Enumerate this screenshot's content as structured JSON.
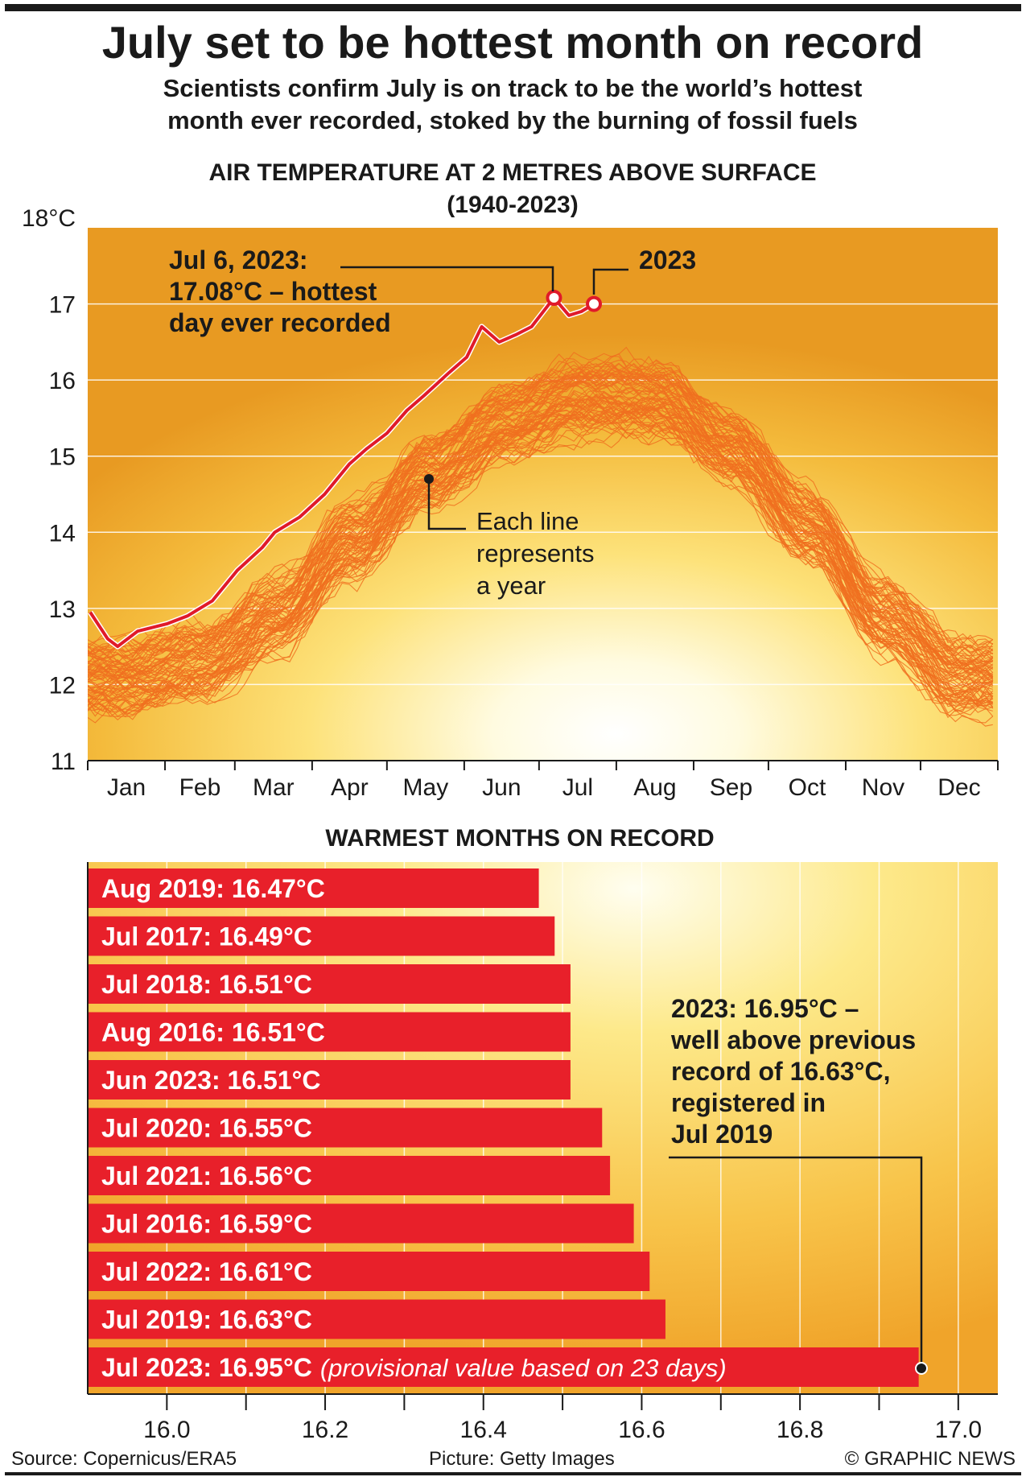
{
  "header": {
    "title": "July set to be hottest month on record",
    "subtitle_lines": [
      "Scientists confirm July is on track to be the world’s hottest",
      "month ever recorded, stoked by the burning of fossil fuels"
    ]
  },
  "colors": {
    "bar": "#e8202a",
    "line_2023": "#e01a2a",
    "year_lines": "#f07020",
    "sky_dark": "#e89a20",
    "sky_light": "#fff6c0"
  },
  "chart_data": [
    {
      "type": "line",
      "title": "AIR TEMPERATURE AT 2 METRES ABOVE SURFACE",
      "subtitle": "(1940-2023)",
      "ylabel": "°C",
      "ylim": [
        11,
        18
      ],
      "y_ticks": [
        "18°C",
        "17",
        "16",
        "15",
        "14",
        "13",
        "12",
        "11"
      ],
      "y_tick_values": [
        18,
        17,
        16,
        15,
        14,
        13,
        12,
        11
      ],
      "x_ticks": [
        "Jan",
        "Feb",
        "Mar",
        "Apr",
        "May",
        "Jun",
        "Jul",
        "Aug",
        "Sep",
        "Oct",
        "Nov",
        "Dec"
      ],
      "grid": true,
      "years_range": [
        1940,
        2023
      ],
      "climatology_monthly_mean": [
        12.2,
        12.4,
        13.0,
        14.0,
        14.9,
        15.55,
        15.9,
        15.85,
        15.2,
        14.2,
        13.0,
        12.2
      ],
      "series_2023": {
        "name": "2023",
        "day_of_year": [
          1,
          8,
          12,
          20,
          32,
          40,
          50,
          60,
          70,
          75,
          85,
          95,
          105,
          112,
          120,
          128,
          135,
          145,
          152,
          158,
          165,
          172,
          178,
          187,
          193,
          198,
          203
        ],
        "values": [
          12.95,
          12.6,
          12.5,
          12.7,
          12.8,
          12.9,
          13.1,
          13.5,
          13.8,
          14.0,
          14.2,
          14.5,
          14.9,
          15.1,
          15.3,
          15.6,
          15.8,
          16.1,
          16.3,
          16.7,
          16.5,
          16.6,
          16.7,
          17.08,
          16.85,
          16.9,
          17.0
        ]
      },
      "annotations": {
        "record_day": [
          "Jul 6, 2023:",
          "17.08°C – hottest",
          "day ever recorded"
        ],
        "year_label": "2023",
        "each_line": [
          "Each line",
          "represents",
          "a year"
        ]
      }
    },
    {
      "type": "bar",
      "orientation": "horizontal",
      "title": "WARMEST MONTHS ON RECORD",
      "xlim": [
        15.9,
        17.05
      ],
      "x_ticks": [
        "16.0",
        "16.2",
        "16.4",
        "16.6",
        "16.8",
        "17.0"
      ],
      "x_tick_values": [
        16.0,
        16.2,
        16.4,
        16.6,
        16.8,
        17.0
      ],
      "categories": [
        "Aug 2019",
        "Jul 2017",
        "Jul 2018",
        "Aug 2016",
        "Jun 2023",
        "Jul 2020",
        "Jul 2021",
        "Jul 2016",
        "Jul 2022",
        "Jul 2019",
        "Jul 2023"
      ],
      "values": [
        16.47,
        16.49,
        16.51,
        16.51,
        16.51,
        16.55,
        16.56,
        16.59,
        16.61,
        16.63,
        16.95
      ],
      "labels": [
        "Aug 2019: 16.47°C",
        "Jul 2017: 16.49°C",
        "Jul 2018: 16.51°C",
        "Aug 2016: 16.51°C",
        "Jun 2023: 16.51°C",
        "Jul 2020: 16.55°C",
        "Jul 2021: 16.56°C",
        "Jul 2016: 16.59°C",
        "Jul 2022: 16.61°C",
        "Jul 2019: 16.63°C",
        "Jul 2023: 16.95°C"
      ],
      "last_bar_note": "(provisional value based on 23 days)",
      "annotation": [
        "2023: 16.95°C –",
        "well above previous",
        "record of 16.63°C,",
        "registered in",
        "Jul 2019"
      ]
    }
  ],
  "footer": {
    "source": "Source: Copernicus/ERA5",
    "picture": "Picture: Getty Images",
    "copyright": "© GRAPHIC NEWS"
  }
}
